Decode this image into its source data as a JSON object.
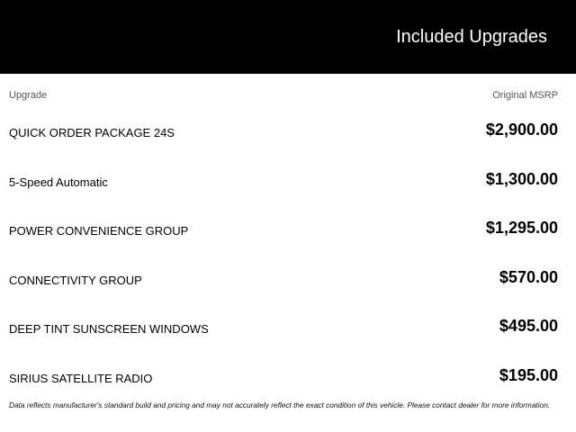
{
  "header": {
    "title": "Included Upgrades"
  },
  "columns": {
    "upgrade": "Upgrade",
    "msrp": "Original MSRP"
  },
  "rows": [
    {
      "name": "QUICK ORDER PACKAGE 24S",
      "price": "$2,900.00"
    },
    {
      "name": "5-Speed Automatic",
      "price": "$1,300.00"
    },
    {
      "name": "POWER CONVENIENCE GROUP",
      "price": "$1,295.00"
    },
    {
      "name": "CONNECTIVITY GROUP",
      "price": "$570.00"
    },
    {
      "name": "DEEP TINT SUNSCREEN WINDOWS",
      "price": "$495.00"
    },
    {
      "name": "SIRIUS SATELLITE RADIO",
      "price": "$195.00"
    }
  ],
  "disclaimer": "Data reflects manufacturer's standard build and pricing and may not accurately reflect the exact condition of this vehicle. Please contact dealer for more information."
}
